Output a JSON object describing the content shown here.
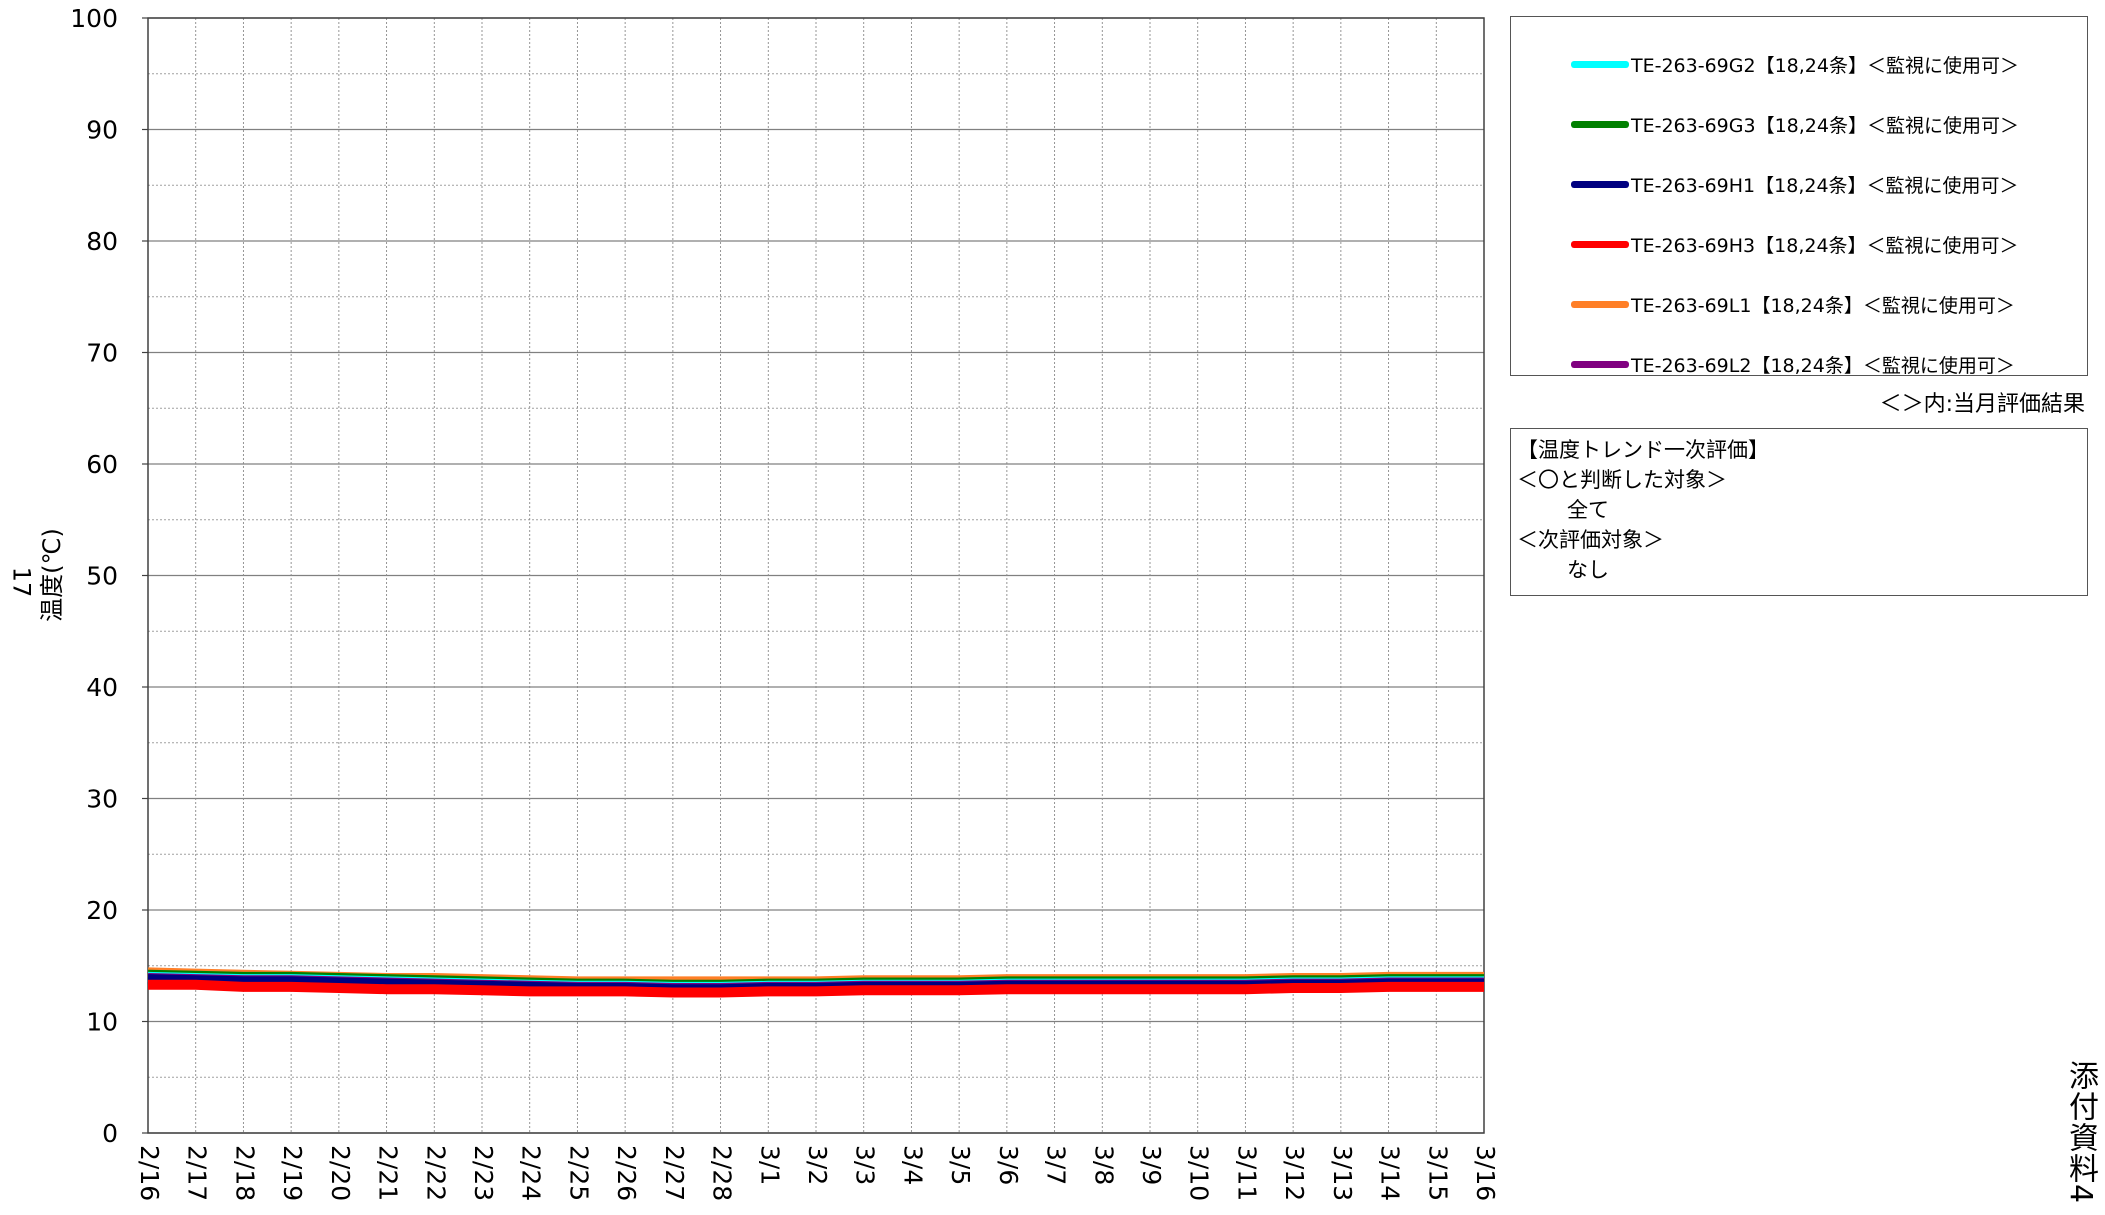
{
  "page_number": "17",
  "attachment_label": "添付資料4",
  "legend_note": "＜＞内:当月評価結果",
  "evaluation": {
    "title": "【温度トレンド一次評価】",
    "ok_heading": "＜〇と判断した対象＞",
    "ok_value": "全て",
    "next_heading": "＜次評価対象＞",
    "next_value": "なし"
  },
  "chart_data": {
    "type": "line",
    "title": "",
    "xlabel": "",
    "ylabel": "温度(℃)",
    "ylim": [
      0,
      100
    ],
    "y_ticks": [
      0,
      10,
      20,
      30,
      40,
      50,
      60,
      70,
      80,
      90,
      100
    ],
    "y_minor_step": 5,
    "x_categories": [
      "2/16",
      "2/17",
      "2/18",
      "2/19",
      "2/20",
      "2/21",
      "2/22",
      "2/23",
      "2/24",
      "2/25",
      "2/26",
      "2/27",
      "2/28",
      "3/1",
      "3/2",
      "3/3",
      "3/4",
      "3/5",
      "3/6",
      "3/7",
      "3/8",
      "3/9",
      "3/10",
      "3/11",
      "3/12",
      "3/13",
      "3/14",
      "3/15",
      "3/16"
    ],
    "grid": true,
    "legend_position": "right",
    "series": [
      {
        "name": "TE-263-69G2【18,24条】＜監視に使用可＞",
        "color": "#00ffff",
        "values": [
          14.0,
          13.9,
          13.8,
          13.8,
          13.7,
          13.6,
          13.5,
          13.4,
          13.3,
          13.2,
          13.2,
          13.1,
          13.1,
          13.2,
          13.2,
          13.3,
          13.3,
          13.3,
          13.4,
          13.4,
          13.4,
          13.4,
          13.4,
          13.4,
          13.5,
          13.5,
          13.6,
          13.6,
          13.6
        ]
      },
      {
        "name": "TE-263-69G3【18,24条】＜監視に使用可＞",
        "color": "#008000",
        "values": [
          14.2,
          14.1,
          14.0,
          14.0,
          13.9,
          13.8,
          13.7,
          13.6,
          13.5,
          13.4,
          13.4,
          13.3,
          13.3,
          13.4,
          13.4,
          13.5,
          13.5,
          13.5,
          13.6,
          13.6,
          13.6,
          13.6,
          13.6,
          13.6,
          13.7,
          13.7,
          13.8,
          13.8,
          13.8
        ]
      },
      {
        "name": "TE-263-69H1【18,24条】＜監視に使用可＞",
        "color": "#000080",
        "values": [
          13.8,
          13.7,
          13.6,
          13.6,
          13.5,
          13.4,
          13.3,
          13.2,
          13.1,
          13.0,
          13.0,
          12.9,
          12.9,
          13.0,
          13.0,
          13.1,
          13.1,
          13.1,
          13.2,
          13.2,
          13.2,
          13.2,
          13.2,
          13.2,
          13.3,
          13.3,
          13.4,
          13.4,
          13.4
        ]
      },
      {
        "name": "TE-263-69H3【18,24条】＜監視に使用可＞",
        "color": "#ff0000",
        "values": [
          13.3,
          13.3,
          13.1,
          13.1,
          13.0,
          12.9,
          12.9,
          12.8,
          12.7,
          12.7,
          12.7,
          12.6,
          12.6,
          12.7,
          12.7,
          12.8,
          12.8,
          12.8,
          12.9,
          12.9,
          12.9,
          12.9,
          12.9,
          12.9,
          13.0,
          13.0,
          13.1,
          13.1,
          13.1
        ]
      },
      {
        "name": "TE-263-69L1【18,24条】＜監視に使用可＞",
        "color": "#ff7f27",
        "values": [
          14.4,
          14.3,
          14.2,
          14.1,
          14.0,
          13.9,
          13.9,
          13.8,
          13.7,
          13.6,
          13.6,
          13.6,
          13.6,
          13.6,
          13.6,
          13.7,
          13.7,
          13.7,
          13.8,
          13.8,
          13.8,
          13.8,
          13.8,
          13.8,
          13.9,
          13.9,
          14.0,
          14.0,
          14.0
        ]
      },
      {
        "name": "TE-263-69L2【18,24条】＜監視に使用可＞",
        "color": "#800080",
        "values": [
          13.9,
          13.8,
          13.7,
          13.7,
          13.6,
          13.5,
          13.4,
          13.3,
          13.2,
          13.1,
          13.1,
          13.0,
          13.0,
          13.1,
          13.1,
          13.2,
          13.2,
          13.2,
          13.3,
          13.3,
          13.3,
          13.3,
          13.3,
          13.3,
          13.4,
          13.4,
          13.5,
          13.5,
          13.5
        ]
      }
    ]
  }
}
